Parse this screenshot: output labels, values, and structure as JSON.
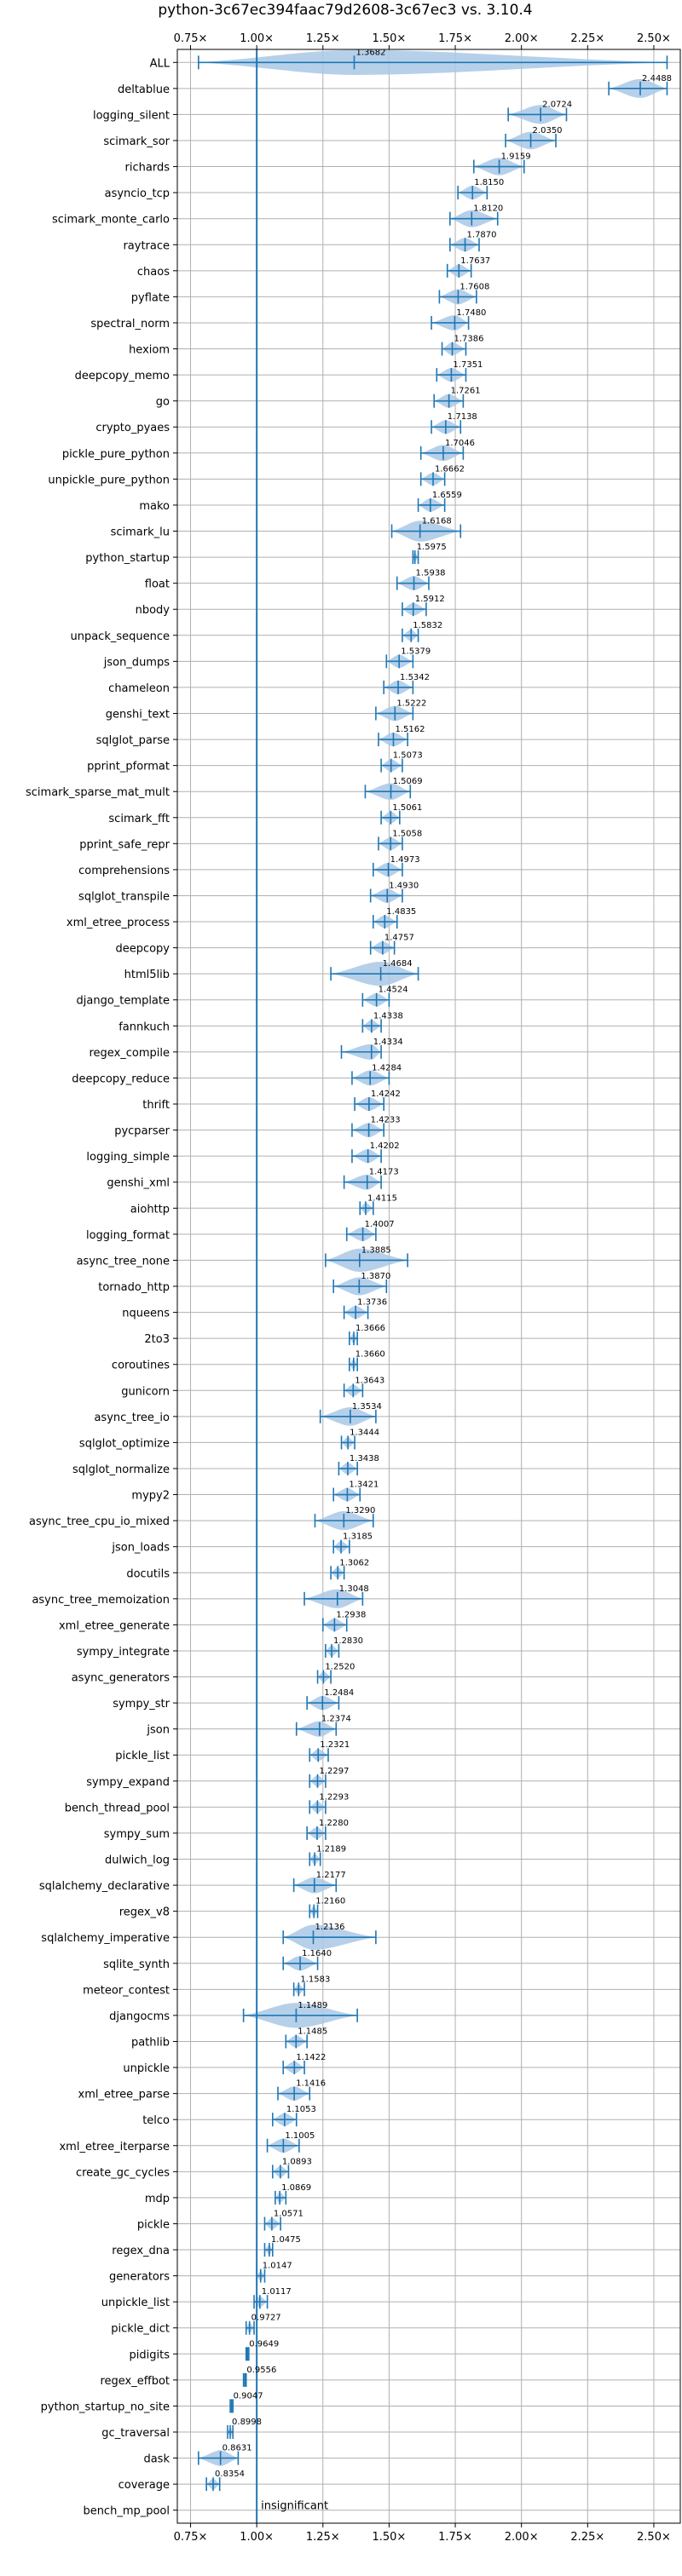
{
  "chart_data": {
    "type": "violin",
    "title": "python-3c67ec394faac79d2608-3c67ec3 vs. 3.10.4",
    "xlabel": "",
    "ylabel": "",
    "xlim": [
      0.7,
      2.6
    ],
    "xticks": [
      0.75,
      1.0,
      1.25,
      1.5,
      1.75,
      2.0,
      2.25,
      2.5
    ],
    "xtick_labels": [
      "0.75×",
      "1.00×",
      "1.25×",
      "1.50×",
      "1.75×",
      "2.00×",
      "2.25×",
      "2.50×"
    ],
    "reference_line_x": 1.0,
    "grid": true,
    "colors": {
      "violin": "#a9c8e6",
      "line": "#1f77b4",
      "grid": "#b0b0b0",
      "text": "#000000"
    },
    "insignificant_label": "insignificant",
    "benchmarks": [
      {
        "name": "ALL",
        "median": 1.3682,
        "min": 0.78,
        "max": 2.55,
        "label": "1.3682"
      },
      {
        "name": "deltablue",
        "median": 2.4488,
        "min": 2.33,
        "max": 2.55,
        "label": "2.4488"
      },
      {
        "name": "logging_silent",
        "median": 2.0724,
        "min": 1.95,
        "max": 2.17,
        "label": "2.0724"
      },
      {
        "name": "scimark_sor",
        "median": 2.035,
        "min": 1.94,
        "max": 2.13,
        "label": "2.0350"
      },
      {
        "name": "richards",
        "median": 1.9159,
        "min": 1.82,
        "max": 2.01,
        "label": "1.9159"
      },
      {
        "name": "asyncio_tcp",
        "median": 1.815,
        "min": 1.76,
        "max": 1.87,
        "label": "1.8150"
      },
      {
        "name": "scimark_monte_carlo",
        "median": 1.812,
        "min": 1.73,
        "max": 1.91,
        "label": "1.8120"
      },
      {
        "name": "raytrace",
        "median": 1.787,
        "min": 1.73,
        "max": 1.84,
        "label": "1.7870"
      },
      {
        "name": "chaos",
        "median": 1.7637,
        "min": 1.72,
        "max": 1.81,
        "label": "1.7637"
      },
      {
        "name": "pyflate",
        "median": 1.7608,
        "min": 1.69,
        "max": 1.83,
        "label": "1.7608"
      },
      {
        "name": "spectral_norm",
        "median": 1.748,
        "min": 1.66,
        "max": 1.8,
        "label": "1.7480"
      },
      {
        "name": "hexiom",
        "median": 1.7386,
        "min": 1.7,
        "max": 1.79,
        "label": "1.7386"
      },
      {
        "name": "deepcopy_memo",
        "median": 1.7351,
        "min": 1.68,
        "max": 1.79,
        "label": "1.7351"
      },
      {
        "name": "go",
        "median": 1.7261,
        "min": 1.67,
        "max": 1.78,
        "label": "1.7261"
      },
      {
        "name": "crypto_pyaes",
        "median": 1.7138,
        "min": 1.66,
        "max": 1.77,
        "label": "1.7138"
      },
      {
        "name": "pickle_pure_python",
        "median": 1.7046,
        "min": 1.62,
        "max": 1.78,
        "label": "1.7046"
      },
      {
        "name": "unpickle_pure_python",
        "median": 1.6662,
        "min": 1.62,
        "max": 1.71,
        "label": "1.6662"
      },
      {
        "name": "mako",
        "median": 1.6559,
        "min": 1.61,
        "max": 1.71,
        "label": "1.6559"
      },
      {
        "name": "scimark_lu",
        "median": 1.6168,
        "min": 1.51,
        "max": 1.77,
        "label": "1.6168"
      },
      {
        "name": "python_startup",
        "median": 1.5975,
        "min": 1.59,
        "max": 1.61,
        "label": "1.5975"
      },
      {
        "name": "float",
        "median": 1.5938,
        "min": 1.53,
        "max": 1.65,
        "label": "1.5938"
      },
      {
        "name": "nbody",
        "median": 1.5912,
        "min": 1.55,
        "max": 1.64,
        "label": "1.5912"
      },
      {
        "name": "unpack_sequence",
        "median": 1.5832,
        "min": 1.55,
        "max": 1.61,
        "label": "1.5832"
      },
      {
        "name": "json_dumps",
        "median": 1.5379,
        "min": 1.49,
        "max": 1.59,
        "label": "1.5379"
      },
      {
        "name": "chameleon",
        "median": 1.5342,
        "min": 1.48,
        "max": 1.59,
        "label": "1.5342"
      },
      {
        "name": "genshi_text",
        "median": 1.5222,
        "min": 1.45,
        "max": 1.59,
        "label": "1.5222"
      },
      {
        "name": "sqlglot_parse",
        "median": 1.5162,
        "min": 1.46,
        "max": 1.57,
        "label": "1.5162"
      },
      {
        "name": "pprint_pformat",
        "median": 1.5073,
        "min": 1.47,
        "max": 1.55,
        "label": "1.5073"
      },
      {
        "name": "scimark_sparse_mat_mult",
        "median": 1.5069,
        "min": 1.41,
        "max": 1.58,
        "label": "1.5069"
      },
      {
        "name": "scimark_fft",
        "median": 1.5061,
        "min": 1.47,
        "max": 1.54,
        "label": "1.5061"
      },
      {
        "name": "pprint_safe_repr",
        "median": 1.5058,
        "min": 1.46,
        "max": 1.55,
        "label": "1.5058"
      },
      {
        "name": "comprehensions",
        "median": 1.4973,
        "min": 1.44,
        "max": 1.55,
        "label": "1.4973"
      },
      {
        "name": "sqlglot_transpile",
        "median": 1.493,
        "min": 1.43,
        "max": 1.55,
        "label": "1.4930"
      },
      {
        "name": "xml_etree_process",
        "median": 1.4835,
        "min": 1.44,
        "max": 1.53,
        "label": "1.4835"
      },
      {
        "name": "deepcopy",
        "median": 1.4757,
        "min": 1.43,
        "max": 1.52,
        "label": "1.4757"
      },
      {
        "name": "html5lib",
        "median": 1.4684,
        "min": 1.28,
        "max": 1.61,
        "label": "1.4684"
      },
      {
        "name": "django_template",
        "median": 1.4524,
        "min": 1.4,
        "max": 1.5,
        "label": "1.4524"
      },
      {
        "name": "fannkuch",
        "median": 1.4338,
        "min": 1.4,
        "max": 1.47,
        "label": "1.4338"
      },
      {
        "name": "regex_compile",
        "median": 1.4334,
        "min": 1.32,
        "max": 1.47,
        "label": "1.4334"
      },
      {
        "name": "deepcopy_reduce",
        "median": 1.4284,
        "min": 1.36,
        "max": 1.5,
        "label": "1.4284"
      },
      {
        "name": "thrift",
        "median": 1.4242,
        "min": 1.37,
        "max": 1.48,
        "label": "1.4242"
      },
      {
        "name": "pycparser",
        "median": 1.4233,
        "min": 1.36,
        "max": 1.48,
        "label": "1.4233"
      },
      {
        "name": "logging_simple",
        "median": 1.4202,
        "min": 1.36,
        "max": 1.47,
        "label": "1.4202"
      },
      {
        "name": "genshi_xml",
        "median": 1.4173,
        "min": 1.33,
        "max": 1.47,
        "label": "1.4173"
      },
      {
        "name": "aiohttp",
        "median": 1.4115,
        "min": 1.39,
        "max": 1.44,
        "label": "1.4115"
      },
      {
        "name": "logging_format",
        "median": 1.4007,
        "min": 1.34,
        "max": 1.45,
        "label": "1.4007"
      },
      {
        "name": "async_tree_none",
        "median": 1.3885,
        "min": 1.26,
        "max": 1.57,
        "label": "1.3885"
      },
      {
        "name": "tornado_http",
        "median": 1.387,
        "min": 1.29,
        "max": 1.49,
        "label": "1.3870"
      },
      {
        "name": "nqueens",
        "median": 1.3736,
        "min": 1.33,
        "max": 1.42,
        "label": "1.3736"
      },
      {
        "name": "2to3",
        "median": 1.3666,
        "min": 1.35,
        "max": 1.38,
        "label": "1.3666"
      },
      {
        "name": "coroutines",
        "median": 1.366,
        "min": 1.35,
        "max": 1.38,
        "label": "1.3660"
      },
      {
        "name": "gunicorn",
        "median": 1.3643,
        "min": 1.33,
        "max": 1.4,
        "label": "1.3643"
      },
      {
        "name": "async_tree_io",
        "median": 1.3534,
        "min": 1.24,
        "max": 1.45,
        "label": "1.3534"
      },
      {
        "name": "sqlglot_optimize",
        "median": 1.3444,
        "min": 1.32,
        "max": 1.37,
        "label": "1.3444"
      },
      {
        "name": "sqlglot_normalize",
        "median": 1.3438,
        "min": 1.31,
        "max": 1.38,
        "label": "1.3438"
      },
      {
        "name": "mypy2",
        "median": 1.3421,
        "min": 1.29,
        "max": 1.39,
        "label": "1.3421"
      },
      {
        "name": "async_tree_cpu_io_mixed",
        "median": 1.329,
        "min": 1.22,
        "max": 1.44,
        "label": "1.3290"
      },
      {
        "name": "json_loads",
        "median": 1.3185,
        "min": 1.29,
        "max": 1.35,
        "label": "1.3185"
      },
      {
        "name": "docutils",
        "median": 1.3062,
        "min": 1.28,
        "max": 1.33,
        "label": "1.3062"
      },
      {
        "name": "async_tree_memoization",
        "median": 1.3048,
        "min": 1.18,
        "max": 1.4,
        "label": "1.3048"
      },
      {
        "name": "xml_etree_generate",
        "median": 1.2938,
        "min": 1.25,
        "max": 1.34,
        "label": "1.2938"
      },
      {
        "name": "sympy_integrate",
        "median": 1.283,
        "min": 1.26,
        "max": 1.31,
        "label": "1.2830"
      },
      {
        "name": "async_generators",
        "median": 1.252,
        "min": 1.23,
        "max": 1.28,
        "label": "1.2520"
      },
      {
        "name": "sympy_str",
        "median": 1.2484,
        "min": 1.19,
        "max": 1.31,
        "label": "1.2484"
      },
      {
        "name": "json",
        "median": 1.2374,
        "min": 1.15,
        "max": 1.3,
        "label": "1.2374"
      },
      {
        "name": "pickle_list",
        "median": 1.2321,
        "min": 1.2,
        "max": 1.27,
        "label": "1.2321"
      },
      {
        "name": "sympy_expand",
        "median": 1.2297,
        "min": 1.2,
        "max": 1.26,
        "label": "1.2297"
      },
      {
        "name": "bench_thread_pool",
        "median": 1.2293,
        "min": 1.2,
        "max": 1.26,
        "label": "1.2293"
      },
      {
        "name": "sympy_sum",
        "median": 1.228,
        "min": 1.19,
        "max": 1.26,
        "label": "1.2280"
      },
      {
        "name": "dulwich_log",
        "median": 1.2189,
        "min": 1.2,
        "max": 1.24,
        "label": "1.2189"
      },
      {
        "name": "sqlalchemy_declarative",
        "median": 1.2177,
        "min": 1.14,
        "max": 1.3,
        "label": "1.2177"
      },
      {
        "name": "regex_v8",
        "median": 1.216,
        "min": 1.2,
        "max": 1.23,
        "label": "1.2160"
      },
      {
        "name": "sqlalchemy_imperative",
        "median": 1.2136,
        "min": 1.1,
        "max": 1.45,
        "label": "1.2136"
      },
      {
        "name": "sqlite_synth",
        "median": 1.164,
        "min": 1.1,
        "max": 1.23,
        "label": "1.1640"
      },
      {
        "name": "meteor_contest",
        "median": 1.1583,
        "min": 1.14,
        "max": 1.18,
        "label": "1.1583"
      },
      {
        "name": "djangocms",
        "median": 1.1489,
        "min": 0.95,
        "max": 1.38,
        "label": "1.1489"
      },
      {
        "name": "pathlib",
        "median": 1.1485,
        "min": 1.11,
        "max": 1.19,
        "label": "1.1485"
      },
      {
        "name": "unpickle",
        "median": 1.1422,
        "min": 1.1,
        "max": 1.18,
        "label": "1.1422"
      },
      {
        "name": "xml_etree_parse",
        "median": 1.1416,
        "min": 1.08,
        "max": 1.2,
        "label": "1.1416"
      },
      {
        "name": "telco",
        "median": 1.1053,
        "min": 1.06,
        "max": 1.15,
        "label": "1.1053"
      },
      {
        "name": "xml_etree_iterparse",
        "median": 1.1005,
        "min": 1.04,
        "max": 1.16,
        "label": "1.1005"
      },
      {
        "name": "create_gc_cycles",
        "median": 1.0893,
        "min": 1.06,
        "max": 1.12,
        "label": "1.0893"
      },
      {
        "name": "mdp",
        "median": 1.0869,
        "min": 1.07,
        "max": 1.11,
        "label": "1.0869"
      },
      {
        "name": "pickle",
        "median": 1.0571,
        "min": 1.03,
        "max": 1.09,
        "label": "1.0571"
      },
      {
        "name": "regex_dna",
        "median": 1.0475,
        "min": 1.03,
        "max": 1.06,
        "label": "1.0475"
      },
      {
        "name": "generators",
        "median": 1.0147,
        "min": 1.0,
        "max": 1.03,
        "label": "1.0147"
      },
      {
        "name": "unpickle_list",
        "median": 1.0117,
        "min": 0.99,
        "max": 1.04,
        "label": "1.0117"
      },
      {
        "name": "pickle_dict",
        "median": 0.9727,
        "min": 0.96,
        "max": 0.99,
        "label": "0.9727"
      },
      {
        "name": "pidigits",
        "median": 0.9649,
        "min": 0.96,
        "max": 0.97,
        "label": "0.9649"
      },
      {
        "name": "regex_effbot",
        "median": 0.9556,
        "min": 0.95,
        "max": 0.96,
        "label": "0.9556"
      },
      {
        "name": "python_startup_no_site",
        "median": 0.9047,
        "min": 0.9,
        "max": 0.91,
        "label": "0.9047"
      },
      {
        "name": "gc_traversal",
        "median": 0.8998,
        "min": 0.89,
        "max": 0.91,
        "label": "0.8998"
      },
      {
        "name": "dask",
        "median": 0.8631,
        "min": 0.78,
        "max": 0.93,
        "label": "0.8631"
      },
      {
        "name": "coverage",
        "median": 0.8354,
        "min": 0.81,
        "max": 0.86,
        "label": "0.8354"
      },
      {
        "name": "bench_mp_pool",
        "median": null,
        "min": null,
        "max": null,
        "label": ""
      }
    ]
  }
}
